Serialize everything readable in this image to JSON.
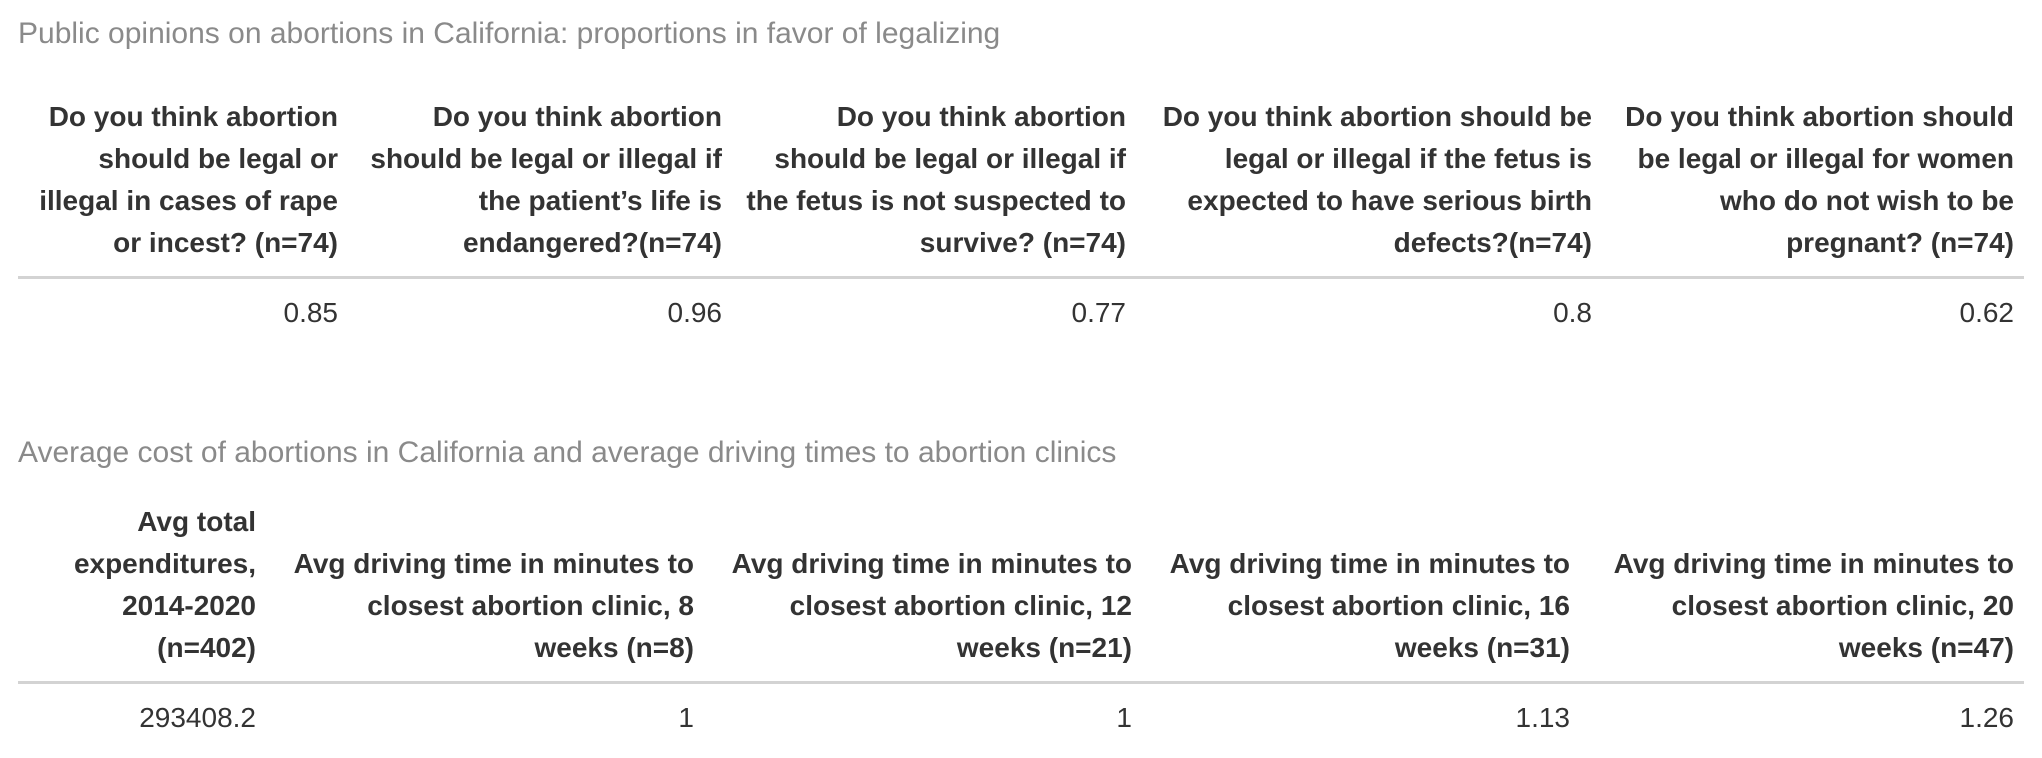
{
  "tables": [
    {
      "caption": "Public opinions on abortions in California: proportions in favor of legalizing",
      "headers": [
        "Do you think abortion should be legal or illegal in cases of rape or incest? (n=74)",
        "Do you think abortion should be legal or illegal if the patient’s life is endangered?(n=74)",
        "Do you think abortion should be legal or illegal if the fetus is not suspected to survive? (n=74)",
        "Do you think abortion should be legal or illegal if the fetus is expected to have serious birth defects?(n=74)",
        "Do you think abortion should be legal or illegal for women who do not wish to be pregnant? (n=74)"
      ],
      "rows": [
        [
          "0.85",
          "0.96",
          "0.77",
          "0.8",
          "0.62"
        ]
      ]
    },
    {
      "caption": "Average cost of abortions in California and average driving times to abortion clinics",
      "headers": [
        "Avg total expenditures, 2014-2020 (n=402)",
        "Avg driving time in minutes to closest abortion clinic, 8 weeks (n=8)",
        "Avg driving time in minutes to closest abortion clinic, 12 weeks (n=21)",
        "Avg driving time in minutes to closest abortion clinic, 16 weeks (n=31)",
        "Avg driving time in minutes to closest abortion clinic, 20 weeks (n=47)"
      ],
      "rows": [
        [
          "293408.2",
          "1",
          "1",
          "1.13",
          "1.26"
        ]
      ]
    }
  ]
}
